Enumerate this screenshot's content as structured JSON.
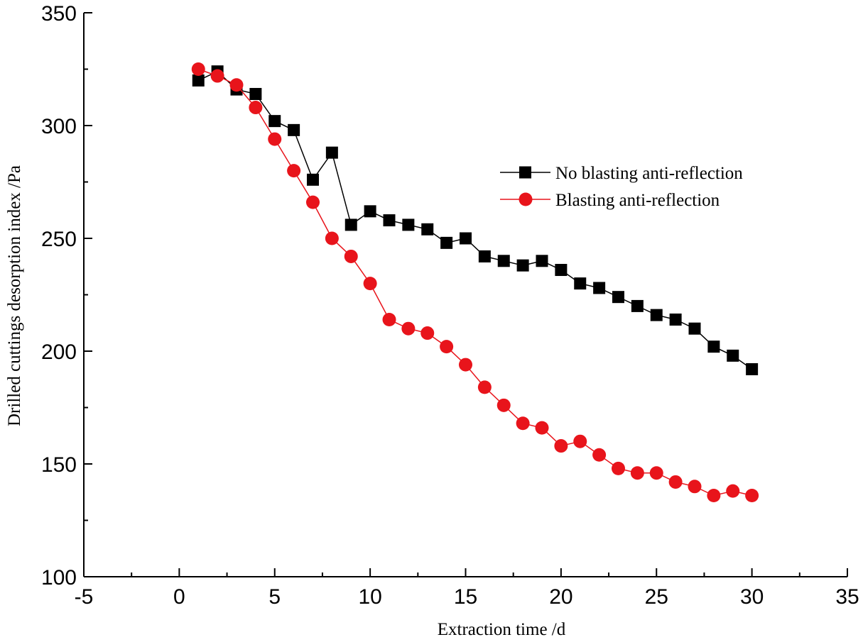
{
  "chart_data": {
    "type": "line",
    "title": "",
    "xlabel": "Extraction time /d",
    "ylabel": "Drilled cuttings desorption index /Pa",
    "xlim": [
      -5,
      35
    ],
    "ylim": [
      100,
      350
    ],
    "xticks": [
      -5,
      0,
      5,
      10,
      15,
      20,
      25,
      30,
      35
    ],
    "yticks": [
      100,
      150,
      200,
      250,
      300,
      350
    ],
    "grid": false,
    "legend_position": "top-right",
    "x": [
      1,
      2,
      3,
      4,
      5,
      6,
      7,
      8,
      9,
      10,
      11,
      12,
      13,
      14,
      15,
      16,
      17,
      18,
      19,
      20,
      21,
      22,
      23,
      24,
      25,
      26,
      27,
      28,
      29,
      30
    ],
    "series": [
      {
        "name": "No blasting anti-reflection",
        "color": "#000000",
        "marker": "square",
        "values": [
          320,
          324,
          316,
          314,
          302,
          298,
          276,
          288,
          256,
          262,
          258,
          256,
          254,
          248,
          250,
          242,
          240,
          238,
          240,
          236,
          230,
          228,
          224,
          220,
          216,
          214,
          210,
          202,
          198,
          192
        ]
      },
      {
        "name": "Blasting anti-reflection",
        "color": "#e8141b",
        "marker": "circle",
        "values": [
          325,
          322,
          318,
          308,
          294,
          280,
          266,
          250,
          242,
          230,
          214,
          210,
          208,
          202,
          194,
          184,
          176,
          168,
          166,
          158,
          160,
          154,
          148,
          146,
          146,
          142,
          140,
          136,
          138,
          136
        ]
      }
    ]
  }
}
